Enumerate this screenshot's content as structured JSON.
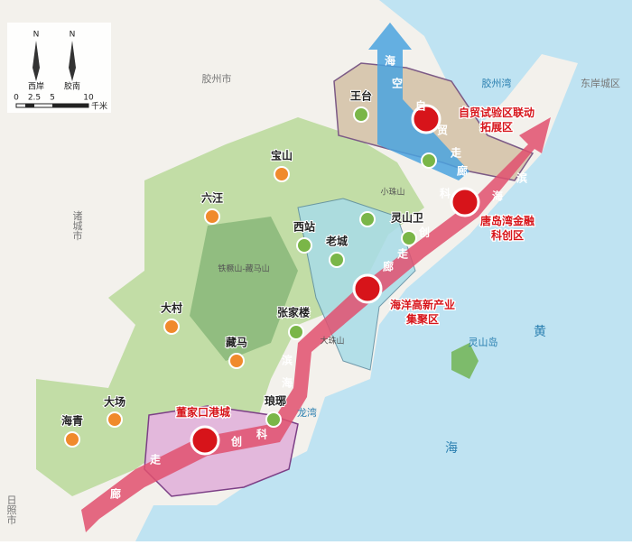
{
  "legend": {
    "compass": [
      {
        "north": "N",
        "label": "西岸"
      },
      {
        "north": "N",
        "label": "胶南"
      }
    ],
    "scale": {
      "ticks": [
        "0",
        "2.5",
        "5",
        "10"
      ],
      "unit": "千米"
    }
  },
  "map": {
    "places": [
      "王台",
      "宝山",
      "六汪",
      "西站",
      "老城",
      "灵山卫",
      "大村",
      "藏马",
      "张家楼",
      "大场",
      "海青",
      "琅琊"
    ],
    "hubs": [
      [
        "自贸试验区联动",
        "拓展区"
      ],
      [
        "唐岛湾金融",
        "科创区"
      ],
      [
        "海洋高新产业",
        "集聚区"
      ],
      [
        "董家口港城"
      ]
    ],
    "areas": [
      "胶州市",
      "诸城市",
      "日照市",
      "东岸城区"
    ],
    "mountains": [
      "小珠山",
      "铁橛山-藏马山",
      "大珠山"
    ],
    "water": [
      "胶州湾",
      "龙湾",
      "灵山岛",
      "黄",
      "海"
    ],
    "corridors": [
      {
        "chars": [
          "海",
          "空",
          "自",
          "贸",
          "走",
          "廊"
        ]
      },
      {
        "chars": [
          "廊",
          "走",
          "创",
          "科",
          "滨",
          "海",
          "廊",
          "走",
          "创",
          "科",
          "海",
          "滨"
        ]
      }
    ]
  }
}
